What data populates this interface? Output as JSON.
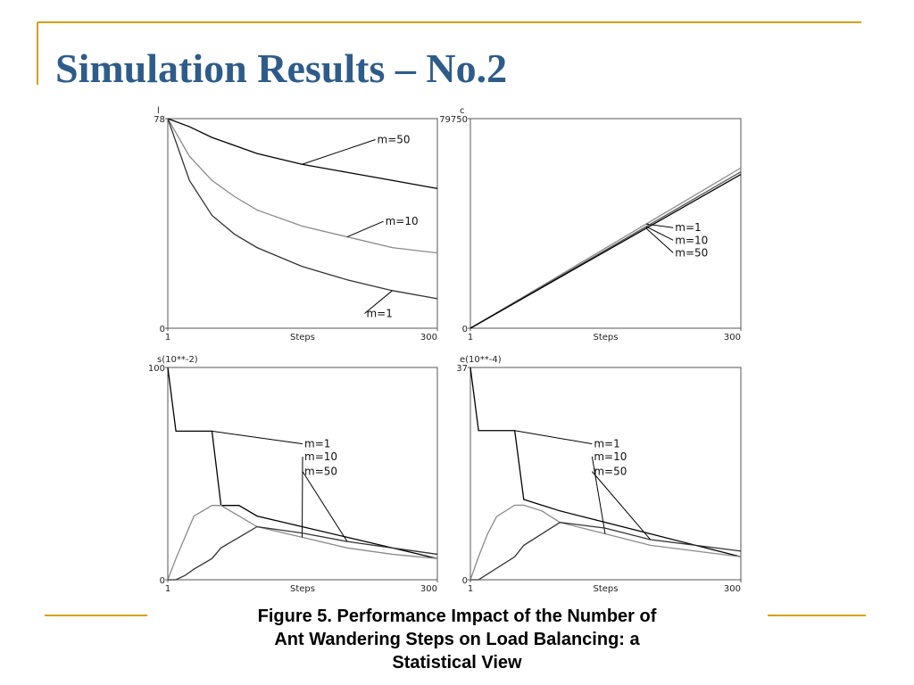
{
  "title": "Simulation Results – No.2",
  "caption": [
    "Figure 5. Performance Impact of the Number of",
    "Ant Wandering Steps on Load Balancing: a",
    "Statistical View"
  ],
  "chart_data": [
    {
      "type": "line",
      "ylabel": "l",
      "xlabel": "Steps",
      "x": [
        1,
        25,
        50,
        75,
        100,
        150,
        200,
        250,
        300
      ],
      "xlim": [
        1,
        300
      ],
      "xticks": [
        1,
        300
      ],
      "ylim": [
        0,
        78
      ],
      "yticks": [
        0,
        78
      ],
      "series": [
        {
          "name": "m=50",
          "color": "#000000",
          "values": [
            78,
            75,
            71,
            68,
            65,
            61,
            58,
            55,
            52
          ]
        },
        {
          "name": "m=10",
          "color": "#8a8a8a",
          "values": [
            78,
            64,
            55,
            49,
            44,
            38,
            34,
            30,
            28
          ]
        },
        {
          "name": "m=1",
          "color": "#333333",
          "values": [
            78,
            55,
            42,
            35,
            30,
            23,
            18,
            14,
            11
          ]
        }
      ]
    },
    {
      "type": "line",
      "ylabel": "c",
      "xlabel": "Steps",
      "x": [
        1,
        300
      ],
      "xlim": [
        1,
        300
      ],
      "xticks": [
        1,
        300
      ],
      "ylim": [
        0,
        79750
      ],
      "yticks": [
        0,
        79750
      ],
      "series": [
        {
          "name": "m=1",
          "color": "#8a8a8a",
          "values": [
            0,
            61000
          ]
        },
        {
          "name": "m=10",
          "color": "#555555",
          "values": [
            0,
            59500
          ]
        },
        {
          "name": "m=50",
          "color": "#000000",
          "values": [
            0,
            58500
          ]
        }
      ]
    },
    {
      "type": "line",
      "ylabel": "s(10**-2)",
      "xlabel": "Steps",
      "x": [
        1,
        10,
        20,
        30,
        50,
        60,
        80,
        100,
        150,
        200,
        250,
        300
      ],
      "xlim": [
        1,
        300
      ],
      "xticks": [
        1,
        300
      ],
      "ylim": [
        0,
        100
      ],
      "yticks": [
        0,
        100
      ],
      "series": [
        {
          "name": "m=1",
          "color": "#000000",
          "values": [
            100,
            70,
            70,
            70,
            70,
            35,
            35,
            30,
            25,
            20,
            15,
            10
          ]
        },
        {
          "name": "m=10",
          "color": "#8a8a8a",
          "values": [
            0,
            10,
            20,
            30,
            35,
            35,
            30,
            25,
            20,
            15,
            12,
            10
          ]
        },
        {
          "name": "m=50",
          "color": "#333333",
          "values": [
            0,
            0,
            2,
            5,
            10,
            15,
            20,
            25,
            22,
            18,
            15,
            12
          ]
        }
      ]
    },
    {
      "type": "line",
      "ylabel": "e(10**-4)",
      "xlabel": "Steps",
      "x": [
        1,
        10,
        20,
        30,
        50,
        60,
        80,
        100,
        150,
        200,
        250,
        300
      ],
      "xlim": [
        1,
        300
      ],
      "xticks": [
        1,
        300
      ],
      "ylim": [
        0,
        37
      ],
      "yticks": [
        0,
        37
      ],
      "series": [
        {
          "name": "m=1",
          "color": "#000000",
          "values": [
            37,
            26,
            26,
            26,
            26,
            14,
            13,
            12,
            10,
            8,
            6,
            4
          ]
        },
        {
          "name": "m=10",
          "color": "#8a8a8a",
          "values": [
            0,
            4,
            8,
            11,
            13,
            13,
            12,
            10,
            8,
            6,
            5,
            4
          ]
        },
        {
          "name": "m=50",
          "color": "#333333",
          "values": [
            0,
            0,
            1,
            2,
            4,
            6,
            8,
            10,
            9,
            7,
            6,
            5
          ]
        }
      ]
    }
  ]
}
